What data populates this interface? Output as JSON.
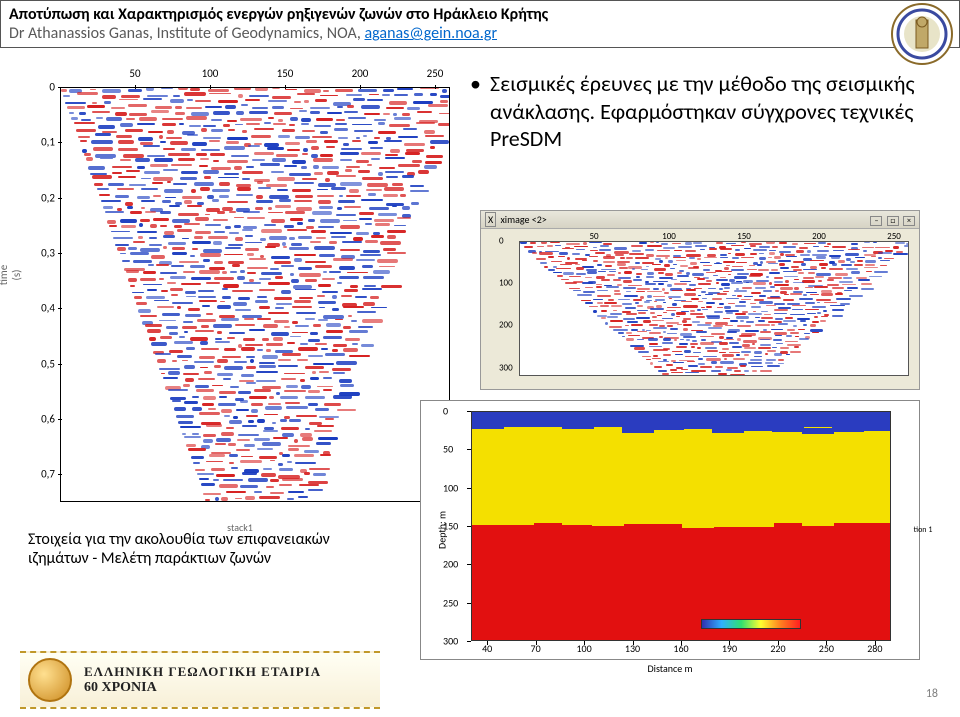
{
  "header": {
    "title": "Αποτύπωση και Χαρακτηρισμός ενεργών ρηξιγενών ζωνών στο Ηράκλειο Κρήτης",
    "subtitle_prefix": "Dr Athanassios Ganas, Institute of Geodynamics, NOA, ",
    "email": "aganas@gein.noa.gr"
  },
  "bullet": {
    "text": "Σεισμικές έρευνες με την μέθοδο της σεισμικής ανάκλασης. Εφαρμόστηκαν σύγχρονες  τεχνικές  PreSDM"
  },
  "caption_left": "Στοιχεία για την ακολουθία  των επιφανειακών ιζημάτων - Μελέτη παράκτιων ζωνών",
  "chart_left": {
    "x_ticks": [
      50,
      100,
      150,
      200,
      250
    ],
    "y_ticks": [
      0,
      0.1,
      0.2,
      0.3,
      0.4,
      0.5,
      0.6,
      0.7
    ],
    "y_title_line1": "time",
    "y_title_line2": "(s)",
    "subtitle": "stack1",
    "x_range": [
      0,
      260
    ],
    "y_range": [
      0,
      0.75
    ],
    "colors": {
      "pos": "#d62020",
      "neg": "#1a3cc0",
      "axis": "#000000"
    }
  },
  "window_right": {
    "title": "ximage <2>",
    "x_ticks": [
      50,
      100,
      150,
      200,
      250
    ],
    "y_ticks": [
      0,
      100,
      200,
      300
    ],
    "x_range": [
      0,
      260
    ],
    "y_range": [
      0,
      320
    ]
  },
  "color_section": {
    "y_ticks": [
      0,
      50,
      100,
      150,
      200,
      250,
      300
    ],
    "x_ticks": [
      40,
      70,
      100,
      130,
      160,
      190,
      220,
      250,
      280
    ],
    "y_range": [
      0,
      300
    ],
    "x_range": [
      30,
      290
    ],
    "y_title": "Depth: m",
    "x_title": "Distance    m",
    "legend_label": "tion 1",
    "layers": [
      {
        "from": 0,
        "to": 20,
        "color": "#2a3cc0"
      },
      {
        "from": 20,
        "to": 145,
        "color": "#f4e000"
      },
      {
        "from": 145,
        "to": 300,
        "color": "#e21010"
      }
    ],
    "top_wave_color": "#2a3cc0"
  },
  "footer": {
    "line1": "ΕΛΛΗΝΙΚΗ ΓΕΩΛΟΓΙΚΗ ΕΤΑΙΡΙΑ",
    "line2": "60 ΧΡΟΝΙΑ"
  },
  "page_number": "18"
}
